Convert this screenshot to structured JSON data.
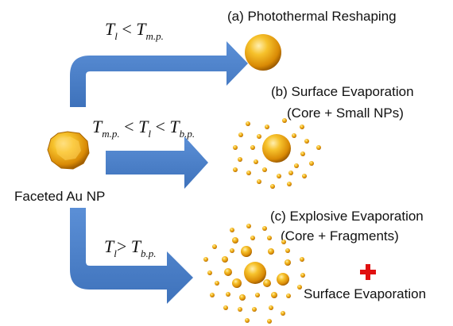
{
  "colors": {
    "arrow": "#4a7fc9",
    "arrow_dark": "#2f5f9f",
    "gold_light": "#ffe9a0",
    "gold_mid": "#f2b21a",
    "gold_dark": "#b86b00",
    "plus": "#e01010"
  },
  "nodes": {
    "source_label": "Faceted Au NP",
    "a_label": "(a) Photothermal Reshaping",
    "b_label_line1": "(b) Surface Evaporation",
    "b_label_line2": "(Core + Small NPs)",
    "c_label_line1": "(c) Explosive Evaporation",
    "c_label_line2": "(Core + Fragments)",
    "c_extra_label": "Surface Evaporation"
  },
  "conditions": {
    "a": {
      "T": "T",
      "sub_l": "l",
      "op1": " < ",
      "Tmp": "T",
      "sub_mp": "m.p."
    },
    "b": {
      "Tmp": "T",
      "sub_mp": "m.p.",
      "op1": " < ",
      "T": "T",
      "sub_l": "l",
      "op2": " < ",
      "Tbp": "T",
      "sub_bp": "b.p."
    },
    "c": {
      "T": "T",
      "sub_l": "l",
      "op1": "> ",
      "Tbp": "T",
      "sub_bp": "b.p."
    }
  }
}
